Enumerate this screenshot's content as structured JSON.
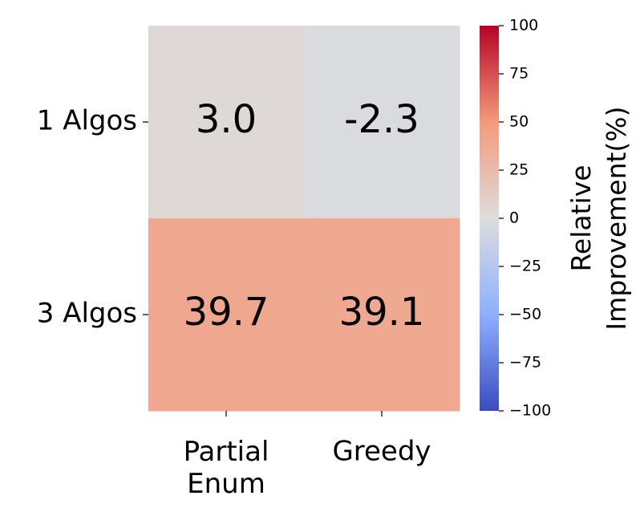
{
  "chart_data": {
    "type": "heatmap",
    "x_categories": [
      "Partial\nEnum",
      "Greedy"
    ],
    "y_categories": [
      "1 Algos",
      "3 Algos"
    ],
    "values": [
      [
        3.0,
        -2.3
      ],
      [
        39.7,
        39.1
      ]
    ],
    "value_labels": [
      [
        "3.0",
        "-2.3"
      ],
      [
        "39.7",
        "39.1"
      ]
    ],
    "colormap": "coolwarm",
    "colorbar_label": "Relative\nImprovement(%)",
    "zlim": [
      -100,
      100
    ],
    "zticks": [
      {
        "value": -100,
        "label": "−100"
      },
      {
        "value": -75,
        "label": "−75"
      },
      {
        "value": -50,
        "label": "−50"
      },
      {
        "value": -25,
        "label": "−25"
      },
      0,
      25,
      50,
      75,
      100
    ]
  }
}
